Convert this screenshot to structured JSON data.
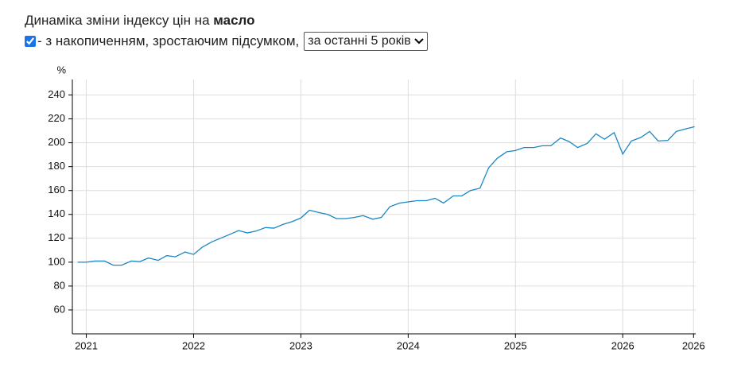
{
  "header": {
    "title": "Динаміка зміни індексу цін на ",
    "title_bold": "масло",
    "checkbox_label": "- з накопиченням, зростаючим підсумком,",
    "select": "за останні 5 років"
  },
  "chart_data": {
    "type": "line",
    "y_label": "%",
    "color": "#1a87c4",
    "grid": true,
    "x": [
      2020.92,
      2021,
      2021.08,
      2021.17,
      2021.25,
      2021.33,
      2021.42,
      2021.5,
      2021.58,
      2021.67,
      2021.75,
      2021.83,
      2021.92,
      2022,
      2022.08,
      2022.17,
      2022.25,
      2022.33,
      2022.42,
      2022.5,
      2022.58,
      2022.67,
      2022.75,
      2022.83,
      2022.92,
      2023,
      2023.08,
      2023.17,
      2023.25,
      2023.33,
      2023.42,
      2023.5,
      2023.58,
      2023.67,
      2023.75,
      2023.83,
      2023.92,
      2024,
      2024.08,
      2024.17,
      2024.25,
      2024.33,
      2024.42,
      2024.5,
      2024.58,
      2024.67,
      2024.75,
      2024.83,
      2024.92,
      2025,
      2025.08,
      2025.17,
      2025.25,
      2025.33,
      2025.42,
      2025.5,
      2025.58,
      2025.67,
      2025.75,
      2025.83,
      2025.92,
      2026,
      2026.08,
      2026.17,
      2026.25,
      2026.33,
      2026.42,
      2026.5,
      2026.58,
      2026.67
    ],
    "values": [
      100,
      100,
      101,
      101,
      97.5,
      97.5,
      101,
      100.5,
      103.5,
      101.5,
      105.5,
      104.5,
      108.5,
      106.5,
      112.5,
      117,
      120,
      123,
      126.5,
      124.5,
      126,
      129,
      128.5,
      131.5,
      134,
      137,
      143.5,
      141.5,
      140,
      136.5,
      136.5,
      137.5,
      139,
      136,
      137.5,
      146.5,
      149.5,
      150.5,
      151.5,
      151.5,
      153.5,
      149.5,
      155.5,
      155.5,
      160,
      162,
      179,
      187,
      192.5,
      193.5,
      196,
      196,
      197.5,
      197.5,
      204,
      201,
      196,
      199.5,
      207.5,
      203,
      208.5,
      190.5,
      201.5,
      204.5,
      209.5,
      201.5,
      202,
      209.5,
      211.5,
      213.5
    ],
    "xlim": [
      2020.87,
      2026.68
    ],
    "xticks": [
      2021,
      2022,
      2023,
      2024,
      2025,
      2026,
      {
        "value": 2026.66,
        "label": "2026"
      }
    ],
    "ylim": [
      40,
      253
    ],
    "yticks": [
      60,
      80,
      100,
      120,
      140,
      160,
      180,
      200,
      220,
      240
    ]
  }
}
